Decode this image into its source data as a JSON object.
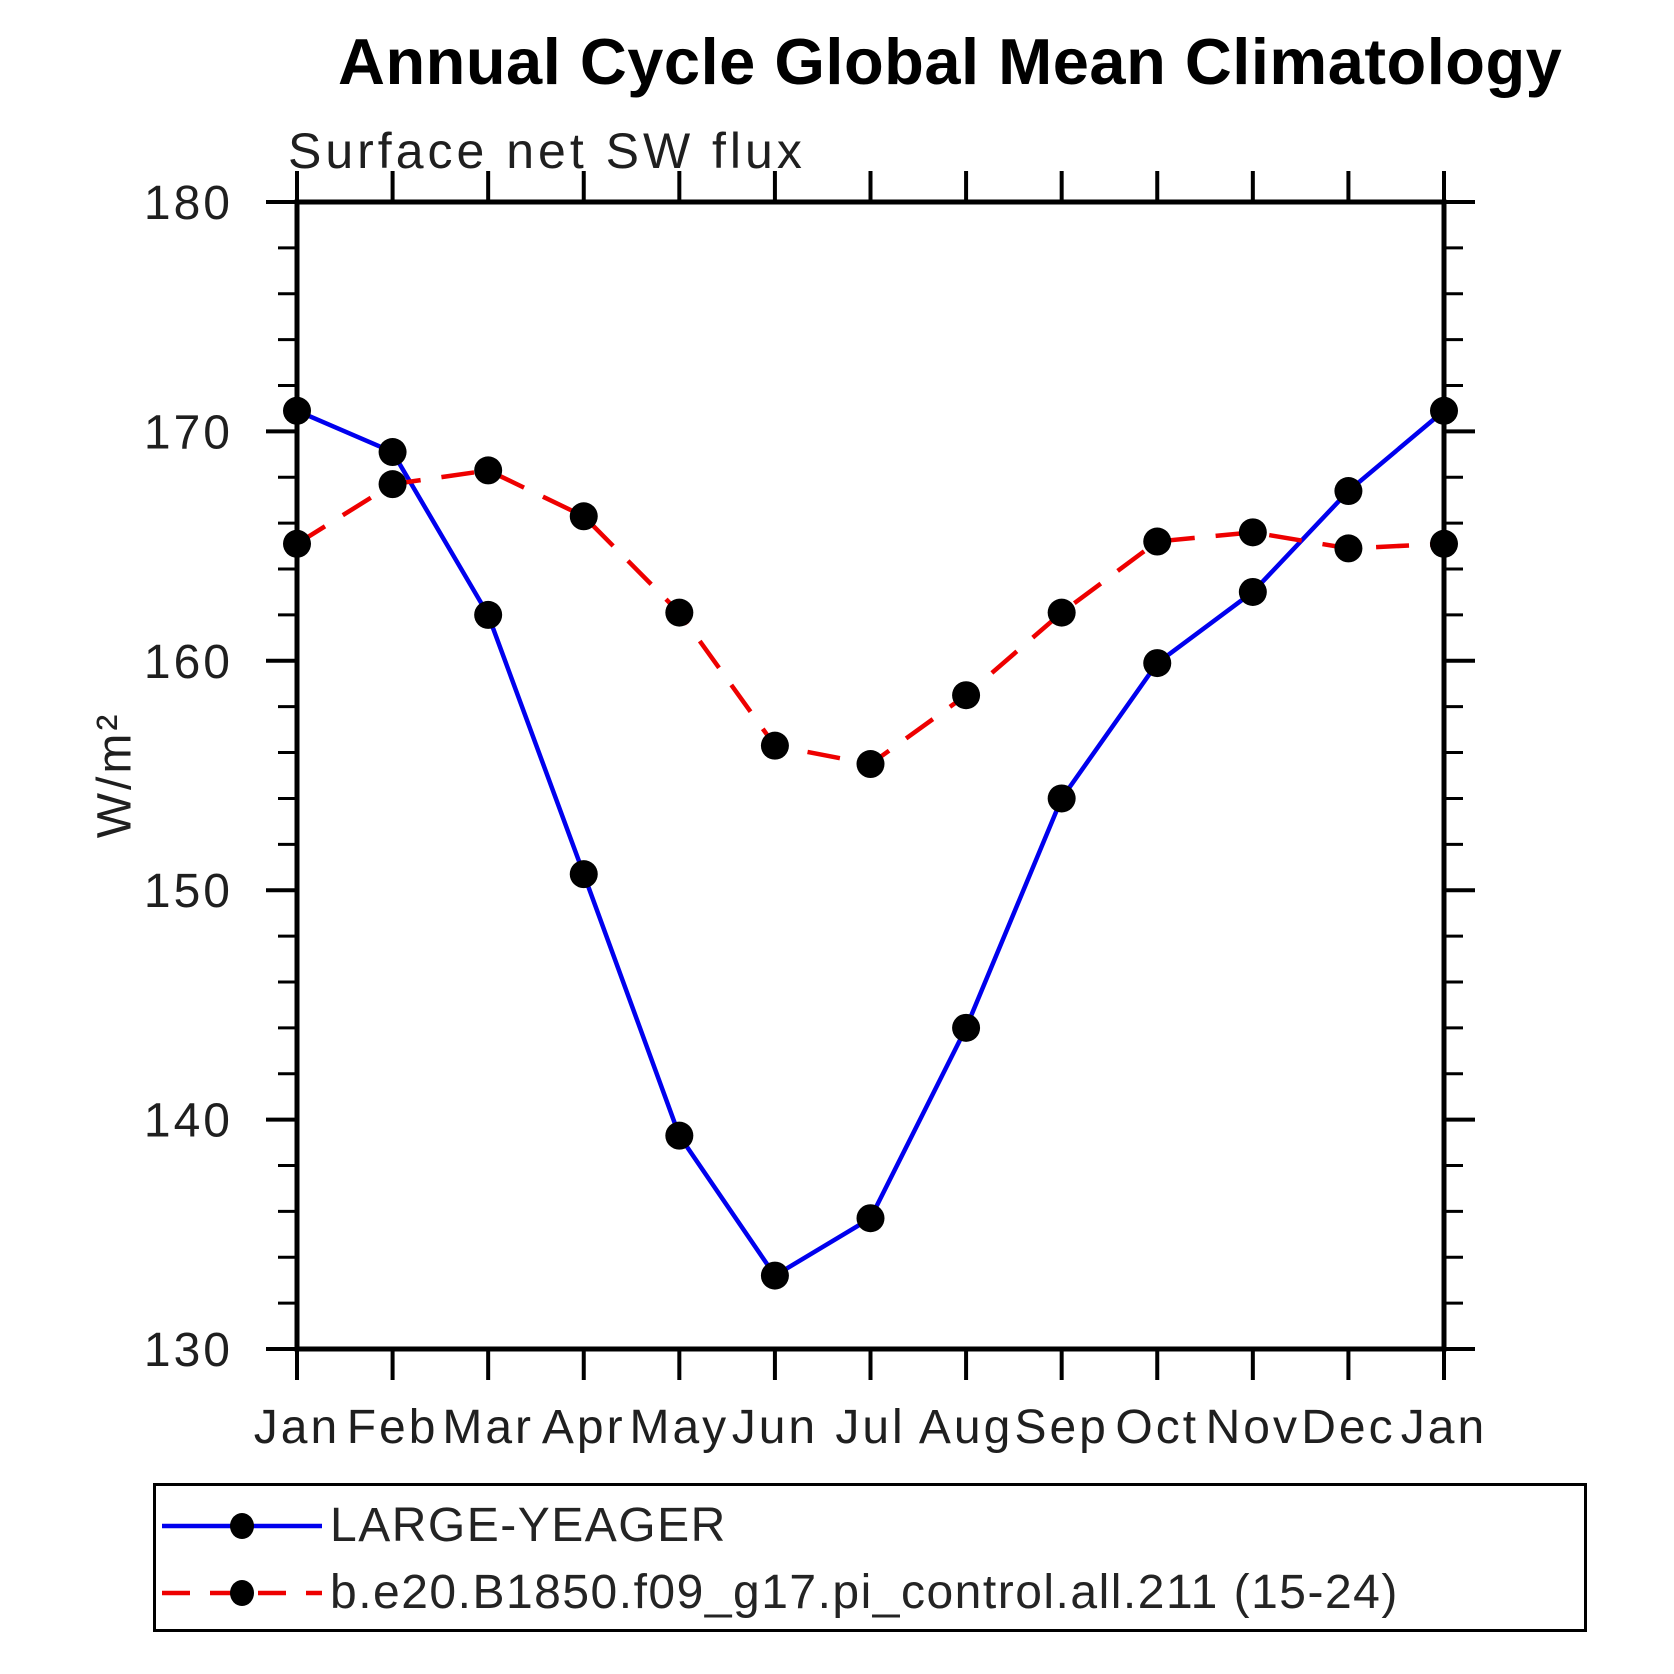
{
  "title": "Annual Cycle Global Mean Climatology",
  "subtitle": "Surface net SW flux",
  "y_axis_label": "W/m²",
  "chart_data": {
    "type": "line",
    "categories": [
      "Jan",
      "Feb",
      "Mar",
      "Apr",
      "May",
      "Jun",
      "Jul",
      "Aug",
      "Sep",
      "Oct",
      "Nov",
      "Dec",
      "Jan"
    ],
    "series": [
      {
        "name": "LARGE-YEAGER",
        "color": "#0000ee",
        "line_style": "solid",
        "marker": "filled-circle",
        "values": [
          170.9,
          169.1,
          162.0,
          150.7,
          139.3,
          133.2,
          135.7,
          144.0,
          154.0,
          159.9,
          163.0,
          167.4,
          170.9
        ]
      },
      {
        "name": "b.e20.B1850.f09_g17.pi_control.all.211 (15-24)",
        "color": "#ee0000",
        "line_style": "dashed",
        "marker": "filled-circle",
        "values": [
          165.1,
          167.7,
          168.3,
          166.3,
          162.1,
          156.3,
          155.5,
          158.5,
          162.1,
          165.2,
          165.6,
          164.9,
          165.1
        ]
      }
    ],
    "xlabel": "",
    "ylabel": "W/m²",
    "ylim": [
      130,
      180
    ],
    "yticks": [
      130,
      140,
      150,
      160,
      170,
      180
    ],
    "ytick_minor_step": 2,
    "grid": false,
    "legend_position": "bottom",
    "marker_color": "#000000",
    "axis_color": "#000000"
  }
}
